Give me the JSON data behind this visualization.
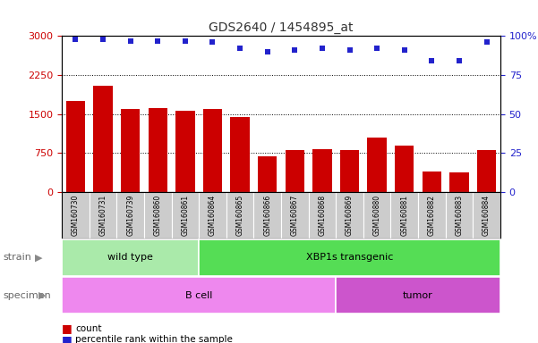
{
  "title": "GDS2640 / 1454895_at",
  "samples": [
    "GSM160730",
    "GSM160731",
    "GSM160739",
    "GSM160860",
    "GSM160861",
    "GSM160864",
    "GSM160865",
    "GSM160866",
    "GSM160867",
    "GSM160868",
    "GSM160869",
    "GSM160880",
    "GSM160881",
    "GSM160882",
    "GSM160883",
    "GSM160884"
  ],
  "counts": [
    1750,
    2050,
    1600,
    1620,
    1560,
    1600,
    1440,
    680,
    810,
    830,
    800,
    1050,
    900,
    390,
    380,
    800
  ],
  "percentiles": [
    98,
    98,
    97,
    97,
    97,
    96,
    92,
    90,
    91,
    92,
    91,
    92,
    91,
    84,
    84,
    96
  ],
  "ylim_left": [
    0,
    3000
  ],
  "ylim_right": [
    0,
    100
  ],
  "yticks_left": [
    0,
    750,
    1500,
    2250,
    3000
  ],
  "yticks_right": [
    0,
    25,
    50,
    75,
    100
  ],
  "bar_color": "#cc0000",
  "dot_color": "#2222cc",
  "strain_groups": [
    {
      "label": "wild type",
      "start": 0,
      "end": 5,
      "color": "#aaeaaa"
    },
    {
      "label": "XBP1s transgenic",
      "start": 5,
      "end": 16,
      "color": "#55dd55"
    }
  ],
  "specimen_groups": [
    {
      "label": "B cell",
      "start": 0,
      "end": 10,
      "color": "#ee88ee"
    },
    {
      "label": "tumor",
      "start": 10,
      "end": 16,
      "color": "#cc55cc"
    }
  ],
  "left_axis_color": "#cc0000",
  "right_axis_color": "#2222cc",
  "tick_bg_color": "#cccccc",
  "label_color": "#666666",
  "arrow_color": "#888888"
}
